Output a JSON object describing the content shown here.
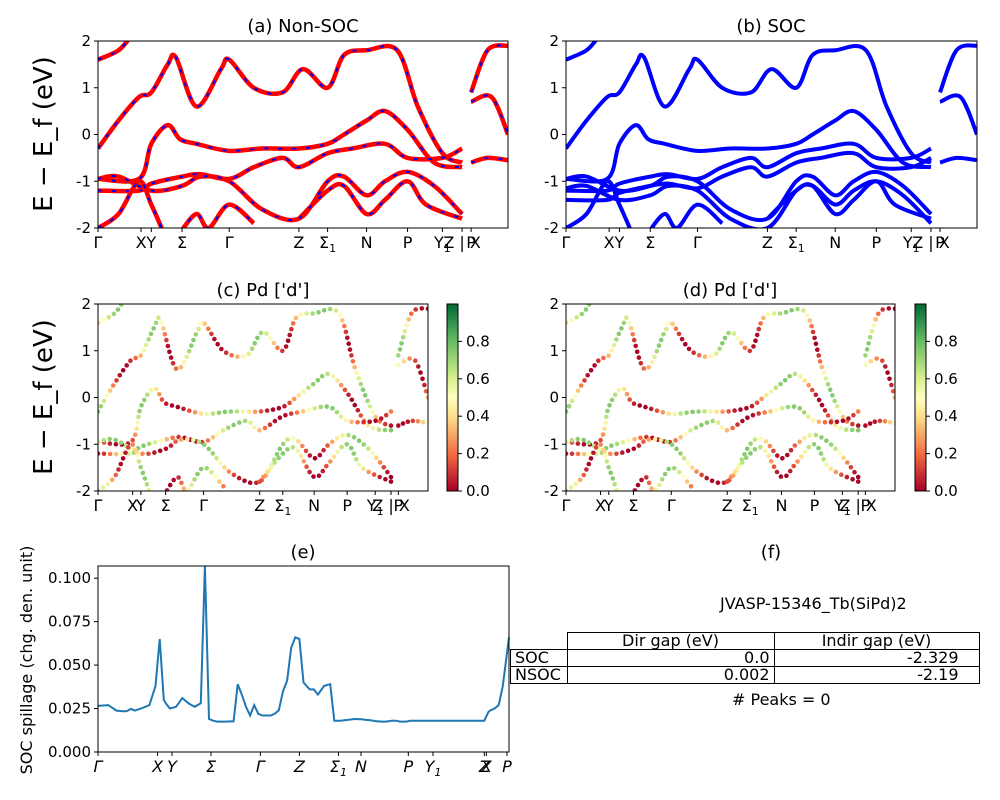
{
  "panels": {
    "a": {
      "title": "(a) Non-SOC"
    },
    "b": {
      "title": "(b) SOC"
    },
    "c": {
      "title": "(c)  Pd ['d']"
    },
    "d": {
      "title": "(d) Pd ['d']"
    },
    "e": {
      "title": "(e)"
    },
    "f": {
      "title": "(f)"
    }
  },
  "band_ylabel": "E − E_f (eV)",
  "chart_data": [
    {
      "type": "line",
      "panel": "a",
      "title": "(a) Non-SOC",
      "ylim": [
        -2,
        2
      ],
      "yticks": [
        -2,
        -1,
        0,
        1,
        2
      ],
      "kpath_labels": [
        "Γ",
        "X",
        "Y",
        "Σ",
        "Γ",
        "Z",
        "Σ1",
        "N",
        "P",
        "Y1",
        "Z | X",
        "P"
      ],
      "line_style": "red solid with blue dashes",
      "colors": [
        "#ff0000",
        "#0000ff"
      ]
    },
    {
      "type": "line",
      "panel": "b",
      "title": "(b) SOC",
      "ylim": [
        -2,
        2
      ],
      "yticks": [
        -2,
        -1,
        0,
        1,
        2
      ],
      "kpath_labels": [
        "Γ",
        "X",
        "Y",
        "Σ",
        "Γ",
        "Z",
        "Σ1",
        "N",
        "P",
        "Y1",
        "Z | X",
        "P"
      ],
      "colors": [
        "#0000ff"
      ]
    },
    {
      "type": "scatter",
      "panel": "c",
      "title": "(c)  Pd ['d']",
      "ylim": [
        -2,
        2
      ],
      "yticks": [
        -2,
        -1,
        0,
        1,
        2
      ],
      "kpath_labels": [
        "Γ",
        "X",
        "Y",
        "Σ",
        "Γ",
        "Z",
        "Σ1",
        "N",
        "P",
        "Y1",
        "Z | X",
        "P"
      ],
      "colorbar": {
        "range": [
          0,
          1
        ],
        "ticks": [
          "0.0",
          "0.2",
          "0.4",
          "0.6",
          "0.8"
        ],
        "colormap": "RdYlGn"
      }
    },
    {
      "type": "scatter",
      "panel": "d",
      "title": "(d) Pd ['d']",
      "ylim": [
        -2,
        2
      ],
      "yticks": [
        -2,
        -1,
        0,
        1,
        2
      ],
      "kpath_labels": [
        "Γ",
        "X",
        "Y",
        "Σ",
        "Γ",
        "Z",
        "Σ1",
        "N",
        "P",
        "Y1",
        "Z | X",
        "P"
      ],
      "colorbar": {
        "range": [
          0,
          1
        ],
        "ticks": [
          "0.0",
          "0.2",
          "0.4",
          "0.6",
          "0.8"
        ],
        "colormap": "RdYlGn"
      }
    },
    {
      "type": "line",
      "panel": "e",
      "title": "(e)",
      "ylabel": "SOC spillage (chg. den. unit)",
      "ylim": [
        0,
        0.107
      ],
      "yticks": [
        "0.000",
        "0.025",
        "0.050",
        "0.075",
        "0.100"
      ],
      "kpath_labels": [
        "Γ",
        "X",
        "Y",
        "Σ",
        "Γ",
        "Z",
        "Σ1",
        "N",
        "P",
        "Y1",
        "Z",
        "X",
        "P"
      ],
      "color": "#1f77b4",
      "x": [
        0,
        0.05,
        0.09,
        0.12,
        0.14,
        0.16,
        0.18,
        0.21,
        0.25,
        0.28,
        0.3,
        0.32,
        0.33,
        0.35,
        0.38,
        0.41,
        0.44,
        0.47,
        0.5,
        0.52,
        0.54,
        0.56,
        0.58,
        0.6,
        0.62,
        0.64,
        0.66,
        0.68,
        0.7,
        0.72,
        0.74,
        0.76,
        0.78,
        0.8,
        0.82,
        0.84,
        0.86,
        0.88,
        0.9,
        0.92,
        0.94,
        0.96,
        0.98,
        1.0,
        1.03,
        1.05,
        1.07,
        1.1,
        1.13,
        1.15,
        1.18,
        1.2,
        1.22,
        1.25,
        1.28,
        1.3,
        1.33,
        1.35,
        1.38,
        1.4,
        1.43,
        1.45,
        1.47,
        1.48,
        1.5,
        1.52,
        1.53,
        1.55,
        1.56,
        1.58,
        1.6,
        1.62,
        1.65,
        1.7,
        1.75,
        1.8,
        1.85,
        1.88,
        1.9,
        1.91,
        1.93,
        1.95,
        1.97,
        2.0
      ],
      "y": [
        0.0265,
        0.027,
        0.0238,
        0.0234,
        0.0235,
        0.0248,
        0.0238,
        0.025,
        0.027,
        0.038,
        0.065,
        0.03,
        0.028,
        0.025,
        0.026,
        0.031,
        0.028,
        0.026,
        0.028,
        0.107,
        0.019,
        0.018,
        0.0175,
        0.0175,
        0.0175,
        0.0176,
        0.0176,
        0.039,
        0.033,
        0.026,
        0.021,
        0.027,
        0.022,
        0.021,
        0.021,
        0.021,
        0.022,
        0.024,
        0.035,
        0.041,
        0.06,
        0.066,
        0.065,
        0.04,
        0.036,
        0.036,
        0.033,
        0.038,
        0.039,
        0.018,
        0.018,
        0.0183,
        0.0185,
        0.019,
        0.0188,
        0.0185,
        0.0182,
        0.0178,
        0.0175,
        0.0175,
        0.018,
        0.018,
        0.0175,
        0.0175,
        0.0175,
        0.018,
        0.018,
        0.018,
        0.018,
        0.018,
        0.018,
        0.018,
        0.018,
        0.018,
        0.018,
        0.018,
        0.018,
        0.018,
        0.023,
        0.024,
        0.025,
        0.027,
        0.038,
        0.066
      ]
    }
  ],
  "table_panel": {
    "caption": "JVASP-15346_Tb(SiPd)2",
    "headers": [
      "",
      "Dir gap (eV)",
      "Indir gap (eV)"
    ],
    "rows": [
      [
        "SOC",
        "0.0",
        "-2.329"
      ],
      [
        "NSOC",
        "0.002",
        "-2.19"
      ]
    ],
    "peaks": "# Peaks = 0"
  }
}
